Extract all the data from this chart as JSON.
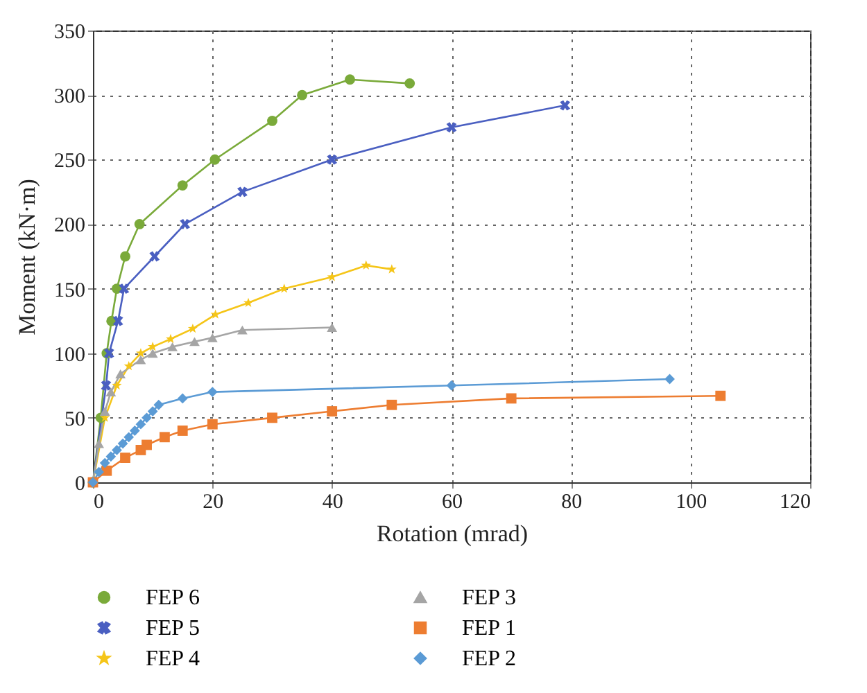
{
  "chart_data": {
    "type": "line",
    "xlabel": "Rotation (mrad)",
    "ylabel": "Moment (kN·m)",
    "xlim": [
      0,
      120
    ],
    "xticks": [
      0,
      20,
      40,
      60,
      80,
      100,
      120
    ],
    "ylim": [
      0,
      350
    ],
    "yticks": [
      0,
      50,
      100,
      150,
      200,
      250,
      300,
      350
    ],
    "grid": true,
    "legend": "bottom",
    "series": [
      {
        "name": "FEP 6",
        "color": "#7aaa3a",
        "marker": "circle",
        "x": [
          0,
          1.3,
          2.3,
          3.1,
          4,
          5.4,
          7.8,
          15,
          20.4,
          30,
          35,
          43,
          53
        ],
        "values": [
          0,
          50,
          100,
          125,
          150,
          175,
          200,
          230,
          250,
          280,
          300,
          312,
          309
        ]
      },
      {
        "name": "FEP 5",
        "color": "#4a5fc1",
        "marker": "cross",
        "x": [
          0,
          2.2,
          2.7,
          4.2,
          5.2,
          10.3,
          15.4,
          25,
          40,
          60,
          79
        ],
        "values": [
          0,
          75,
          100,
          125,
          150,
          175,
          200,
          225,
          250,
          275,
          292
        ]
      },
      {
        "name": "FEP 4",
        "color": "#f5c518",
        "marker": "star",
        "x": [
          0,
          2,
          4,
          6,
          8,
          10,
          13,
          16.7,
          20.5,
          26,
          32,
          40,
          45.7,
          50
        ],
        "values": [
          0,
          50,
          75,
          90,
          100,
          105,
          111,
          119,
          130,
          139,
          150,
          159,
          168,
          165
        ]
      },
      {
        "name": "FEP 3",
        "color": "#a5a5a5",
        "marker": "triangle",
        "x": [
          0,
          1,
          2,
          3,
          4.6,
          8,
          10,
          13.3,
          17,
          20,
          25,
          40
        ],
        "values": [
          0,
          30,
          55,
          70,
          84,
          95,
          100,
          105,
          109,
          112,
          118,
          120
        ]
      },
      {
        "name": "FEP 1",
        "color": "#ed7d31",
        "marker": "square",
        "x": [
          0,
          2.3,
          5.4,
          8,
          9,
          12,
          15,
          20,
          30,
          40,
          50,
          70,
          105
        ],
        "values": [
          0,
          9,
          19,
          25,
          29,
          35,
          40,
          45,
          50,
          55,
          60,
          65,
          67
        ]
      },
      {
        "name": "FEP 2",
        "color": "#5b9bd5",
        "marker": "diamond",
        "x": [
          0,
          1,
          2,
          3,
          4,
          5,
          6,
          7,
          8,
          9,
          10,
          11,
          15,
          20,
          60,
          96.5
        ],
        "values": [
          0,
          8,
          15,
          20,
          25,
          30,
          35,
          40,
          45,
          50,
          55,
          60,
          65,
          70,
          75,
          80
        ]
      }
    ]
  }
}
